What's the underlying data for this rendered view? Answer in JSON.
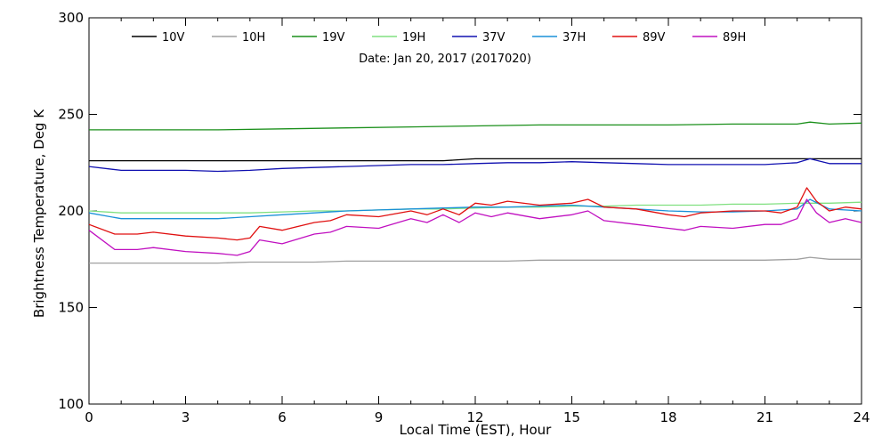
{
  "chart_data": {
    "type": "line",
    "subtitle": "Date: Jan 20, 2017 (2017020)",
    "xlabel": "Local Time (EST), Hour",
    "ylabel": "Brightness Temperature, Deg K",
    "xlim": [
      0,
      24
    ],
    "ylim": [
      100,
      300
    ],
    "x_ticks": [
      0,
      3,
      6,
      9,
      12,
      15,
      18,
      21,
      24
    ],
    "y_ticks": [
      100,
      150,
      200,
      250,
      300
    ],
    "grid": false,
    "legend_position": "top",
    "series": [
      {
        "name": "10V",
        "color": "#000000",
        "x": [
          0,
          1,
          2,
          3,
          4,
          5,
          6,
          7,
          8,
          9,
          10,
          11,
          12,
          13,
          14,
          15,
          16,
          17,
          18,
          19,
          20,
          21,
          22,
          22.4,
          23,
          24
        ],
        "y": [
          226,
          226,
          226,
          226,
          226,
          226,
          226,
          226,
          226,
          226,
          226,
          226,
          227,
          227,
          227,
          227,
          227,
          227,
          227,
          227,
          227,
          227,
          227,
          227,
          227,
          227
        ]
      },
      {
        "name": "10H",
        "color": "#a0a0a0",
        "x": [
          0,
          1,
          2,
          3,
          4,
          5,
          6,
          7,
          8,
          9,
          10,
          11,
          12,
          13,
          14,
          15,
          16,
          17,
          18,
          19,
          20,
          21,
          22,
          22.4,
          23,
          24
        ],
        "y": [
          173,
          173,
          173,
          173,
          173,
          173.5,
          173.5,
          173.5,
          174,
          174,
          174,
          174,
          174,
          174,
          174.5,
          174.5,
          174.5,
          174.5,
          174.5,
          174.5,
          174.5,
          174.5,
          175,
          176,
          175,
          175
        ]
      },
      {
        "name": "19V",
        "color": "#1a8f1a",
        "x": [
          0,
          2,
          4,
          6,
          8,
          10,
          12,
          14,
          16,
          18,
          20,
          22,
          22.4,
          23,
          24
        ],
        "y": [
          242,
          242,
          242,
          242.5,
          243,
          243.5,
          244,
          244.5,
          244.5,
          244.5,
          245,
          245,
          246,
          245,
          245.5
        ]
      },
      {
        "name": "19H",
        "color": "#80e080",
        "x": [
          0,
          1,
          2,
          3,
          4,
          5,
          6,
          7,
          8,
          9,
          10,
          11,
          12,
          13,
          14,
          15,
          16,
          17,
          18,
          19,
          20,
          21,
          22,
          23,
          24
        ],
        "y": [
          200,
          199,
          199,
          199,
          199,
          199,
          199.5,
          200,
          200,
          200.5,
          201,
          201,
          201.5,
          202,
          202,
          202.5,
          202.5,
          203,
          203,
          203,
          203.5,
          203.5,
          204,
          204,
          204.5
        ]
      },
      {
        "name": "37V",
        "color": "#1010b0",
        "x": [
          0,
          1,
          2,
          3,
          4,
          5,
          6,
          7,
          8,
          9,
          10,
          11,
          12,
          13,
          14,
          15,
          16,
          17,
          18,
          19,
          20,
          21,
          22,
          22.4,
          23,
          24
        ],
        "y": [
          223,
          221,
          221,
          221,
          220.5,
          221,
          222,
          222.5,
          223,
          223.5,
          224,
          224,
          224.5,
          225,
          225,
          225.5,
          225,
          224.5,
          224,
          224,
          224,
          224,
          225,
          227,
          224.5,
          224.5
        ]
      },
      {
        "name": "37H",
        "color": "#1a90d8",
        "x": [
          0,
          1,
          2,
          3,
          4,
          5,
          6,
          7,
          8,
          9,
          10,
          11,
          12,
          13,
          14,
          15,
          16,
          17,
          18,
          19,
          20,
          21,
          22,
          22.4,
          23,
          24
        ],
        "y": [
          199,
          196,
          196,
          196,
          196,
          197,
          198,
          199,
          200,
          200.5,
          201,
          201.5,
          202,
          202,
          202.5,
          203,
          202,
          201,
          200,
          199.5,
          199.5,
          200,
          201,
          206,
          201,
          200
        ]
      },
      {
        "name": "89V",
        "color": "#e01010",
        "x": [
          0,
          0.8,
          1.5,
          2,
          3,
          4,
          4.6,
          5,
          5.3,
          6,
          7,
          7.5,
          8,
          9,
          10,
          10.5,
          11,
          11.5,
          12,
          12.5,
          13,
          14,
          15,
          15.5,
          16,
          17,
          18,
          18.5,
          19,
          20,
          21,
          21.5,
          22,
          22.3,
          22.6,
          23,
          23.5,
          24
        ],
        "y": [
          193,
          188,
          188,
          189,
          187,
          186,
          185,
          186,
          192,
          190,
          194,
          195,
          198,
          197,
          200,
          198,
          201,
          198,
          204,
          203,
          205,
          203,
          204,
          206,
          202,
          201,
          198,
          197,
          199,
          200,
          200,
          199,
          202,
          212,
          205,
          200,
          202,
          201
        ]
      },
      {
        "name": "89H",
        "color": "#c010c0",
        "x": [
          0,
          0.8,
          1.5,
          2,
          3,
          4,
          4.6,
          5,
          5.3,
          6,
          7,
          7.5,
          8,
          9,
          10,
          10.5,
          11,
          11.5,
          12,
          12.5,
          13,
          14,
          15,
          15.5,
          16,
          17,
          18,
          18.5,
          19,
          20,
          21,
          21.5,
          22,
          22.3,
          22.6,
          23,
          23.5,
          24
        ],
        "y": [
          190,
          180,
          180,
          181,
          179,
          178,
          177,
          179,
          185,
          183,
          188,
          189,
          192,
          191,
          196,
          194,
          198,
          194,
          199,
          197,
          199,
          196,
          198,
          200,
          195,
          193,
          191,
          190,
          192,
          191,
          193,
          193,
          196,
          206,
          199,
          194,
          196,
          194
        ]
      }
    ]
  }
}
